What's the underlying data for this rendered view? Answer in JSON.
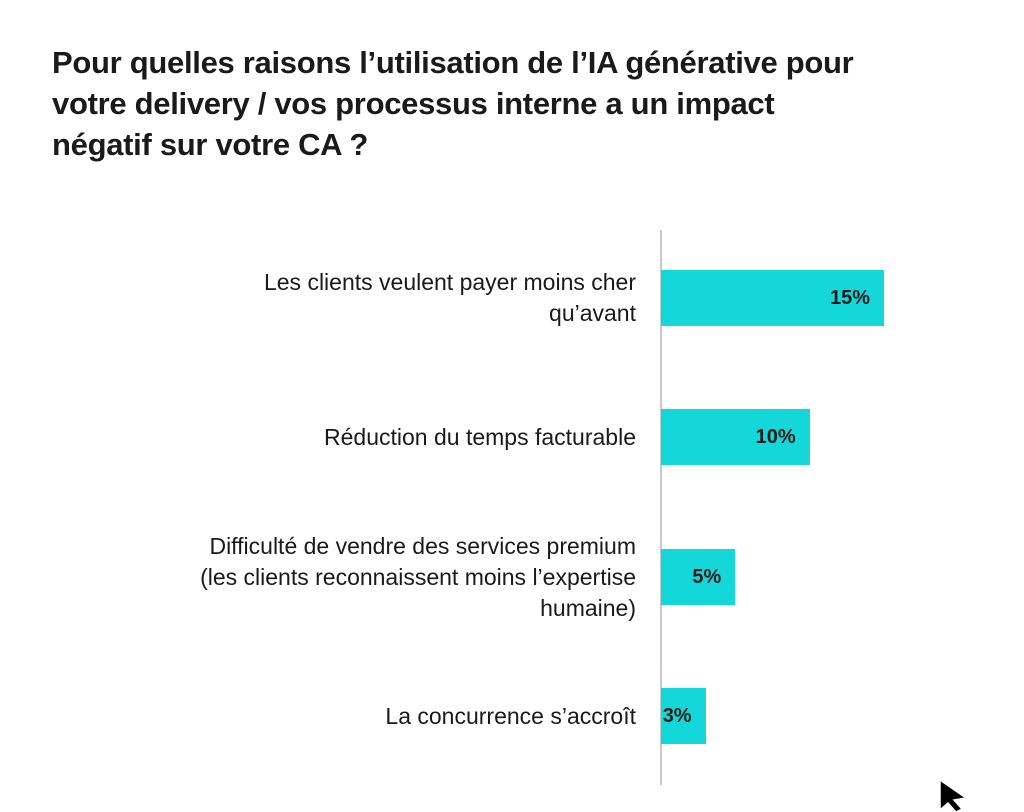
{
  "chart_data": {
    "type": "bar",
    "orientation": "horizontal",
    "title": "Pour quelles raisons l’utilisation de l’IA générative pour votre delivery / vos processus interne a un impact négatif sur votre CA ?",
    "categories": [
      "Les clients veulent payer moins cher qu’avant",
      "Réduction du temps facturable",
      "Difficulté de vendre des services premium (les clients reconnaissent moins l’expertise humaine)",
      "La concurrence s’accroît"
    ],
    "values": [
      15,
      10,
      5,
      3
    ],
    "value_labels": [
      "15%",
      "10%",
      "5%",
      "3%"
    ],
    "color": "#14d7d9"
  }
}
